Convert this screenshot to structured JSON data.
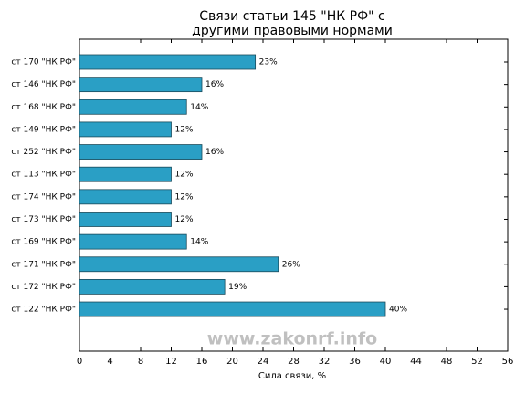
{
  "chart_data": {
    "type": "barh",
    "title": [
      "Связи статьи 145 \"НК РФ\" с",
      "другими правовыми нормами"
    ],
    "categories": [
      "ст 170 \"НК РФ\"",
      "ст 146 \"НК РФ\"",
      "ст 168 \"НК РФ\"",
      "ст 149 \"НК РФ\"",
      "ст 252 \"НК РФ\"",
      "ст 113 \"НК РФ\"",
      "ст 174 \"НК РФ\"",
      "ст 173 \"НК РФ\"",
      "ст 169 \"НК РФ\"",
      "ст 171 \"НК РФ\"",
      "ст 172 \"НК РФ\"",
      "ст 122 \"НК РФ\""
    ],
    "values": [
      23,
      16,
      14,
      12,
      16,
      12,
      12,
      12,
      14,
      26,
      19,
      40
    ],
    "value_labels": [
      "23%",
      "16%",
      "14%",
      "12%",
      "16%",
      "12%",
      "12%",
      "12%",
      "14%",
      "26%",
      "19%",
      "40%"
    ],
    "color": "#2a9fc5",
    "xlabel": "Сила связи, %",
    "xlim": [
      0,
      56
    ],
    "xticks": [
      0,
      4,
      8,
      12,
      16,
      20,
      24,
      28,
      32,
      36,
      40,
      44,
      48,
      52,
      56
    ],
    "watermark": "www.zakonrf.info"
  }
}
